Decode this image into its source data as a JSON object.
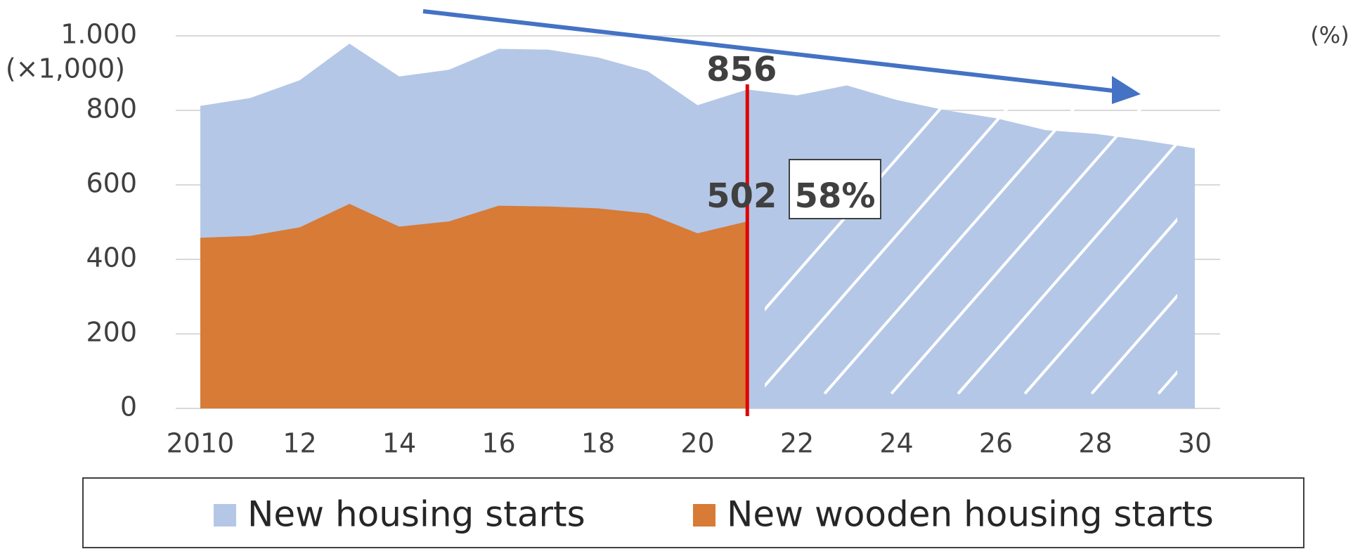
{
  "chart_data": {
    "type": "area",
    "y_unit": "(×1,000)",
    "y2_unit": "(%)",
    "x": [
      2010,
      2011,
      2012,
      2013,
      2014,
      2015,
      2016,
      2017,
      2018,
      2019,
      2020,
      2021,
      2022,
      2023,
      2024,
      2025,
      2026,
      2027,
      2028,
      2029,
      2030
    ],
    "series": [
      {
        "name": "New housing starts",
        "color": "#b4c7e7",
        "values": [
          812,
          833,
          881,
          979,
          891,
          909,
          965,
          963,
          942,
          905,
          814,
          856,
          840,
          867,
          828,
          800,
          779,
          747,
          737,
          719,
          698
        ]
      },
      {
        "name": "New wooden housing starts",
        "color": "#d77b37",
        "values": [
          458,
          463,
          486,
          549,
          488,
          502,
          544,
          542,
          537,
          523,
          470,
          502,
          null,
          null,
          null,
          null,
          null,
          null,
          null,
          null,
          null
        ]
      }
    ],
    "annotations": [
      "58%"
    ],
    "xlim": [
      2010,
      2030
    ],
    "xticks": [
      2010,
      {
        "value": 2012,
        "label": "12"
      },
      {
        "value": 2014,
        "label": "14"
      },
      {
        "value": 2016,
        "label": "16"
      },
      {
        "value": 2018,
        "label": "18"
      },
      {
        "value": 2020,
        "label": "20"
      },
      {
        "value": 2022,
        "label": "22"
      },
      {
        "value": 2024,
        "label": "24"
      },
      {
        "value": 2026,
        "label": "26"
      },
      {
        "value": 2028,
        "label": "28"
      },
      {
        "value": 2030,
        "label": "30"
      }
    ],
    "ylim": [
      0,
      1000
    ],
    "yticks": [
      0,
      200,
      400,
      600,
      800,
      {
        "value": 1000,
        "label": "1.000"
      }
    ],
    "grid": true,
    "legend": "bottom"
  }
}
